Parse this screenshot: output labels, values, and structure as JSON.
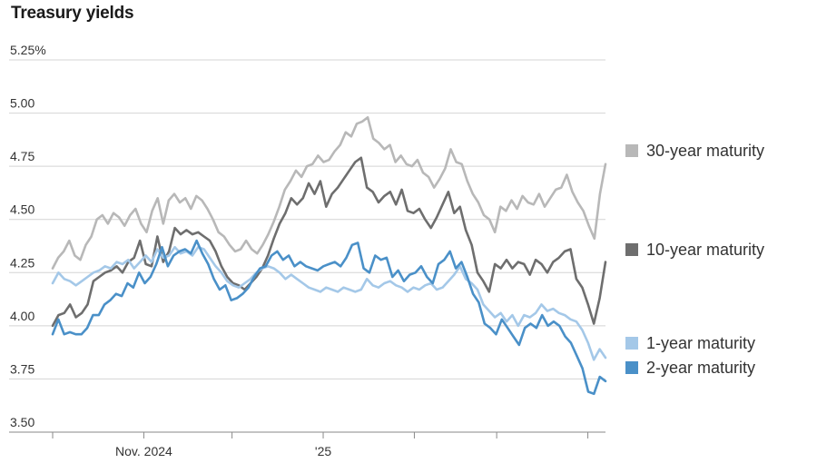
{
  "chart_data": {
    "type": "line",
    "title": "Treasury yields",
    "xlabel": "",
    "ylabel": "",
    "ylim": [
      3.5,
      5.25
    ],
    "y_ticks": [
      {
        "value": 5.25,
        "label": "5.25%"
      },
      {
        "value": 5.0,
        "label": "5.00"
      },
      {
        "value": 4.75,
        "label": "4.75"
      },
      {
        "value": 4.5,
        "label": "4.50"
      },
      {
        "value": 4.25,
        "label": "4.25"
      },
      {
        "value": 4.0,
        "label": "4.00"
      },
      {
        "value": 3.75,
        "label": "3.75"
      },
      {
        "value": 3.5,
        "label": "3.50"
      }
    ],
    "x_ticks": [
      {
        "date": "2024-10-01",
        "label": ""
      },
      {
        "date": "2024-11-01",
        "label": "Nov. 2024"
      },
      {
        "date": "2024-12-01",
        "label": ""
      },
      {
        "date": "2025-01-01",
        "label": "'25"
      },
      {
        "date": "2025-02-01",
        "label": ""
      },
      {
        "date": "2025-03-01",
        "label": ""
      },
      {
        "date": "2025-04-01",
        "label": ""
      }
    ],
    "grid": true,
    "legend_placement": "right",
    "series": [
      {
        "name": "30-year maturity",
        "color": "#b8b8b8",
        "values": [
          4.27,
          4.32,
          4.35,
          4.4,
          4.33,
          4.31,
          4.38,
          4.42,
          4.5,
          4.52,
          4.48,
          4.53,
          4.51,
          4.47,
          4.52,
          4.55,
          4.48,
          4.44,
          4.54,
          4.6,
          4.48,
          4.59,
          4.62,
          4.58,
          4.6,
          4.55,
          4.61,
          4.59,
          4.55,
          4.5,
          4.44,
          4.42,
          4.38,
          4.35,
          4.36,
          4.4,
          4.36,
          4.34,
          4.38,
          4.43,
          4.49,
          4.56,
          4.64,
          4.68,
          4.73,
          4.7,
          4.75,
          4.76,
          4.8,
          4.77,
          4.78,
          4.82,
          4.85,
          4.91,
          4.89,
          4.95,
          4.96,
          4.98,
          4.88,
          4.86,
          4.83,
          4.85,
          4.77,
          4.8,
          4.76,
          4.75,
          4.78,
          4.72,
          4.7,
          4.65,
          4.69,
          4.74,
          4.83,
          4.77,
          4.76,
          4.68,
          4.62,
          4.58,
          4.52,
          4.5,
          4.44,
          4.56,
          4.54,
          4.59,
          4.55,
          4.61,
          4.58,
          4.57,
          4.62,
          4.56,
          4.6,
          4.64,
          4.65,
          4.71,
          4.63,
          4.58,
          4.54,
          4.47,
          4.41,
          4.62,
          4.76
        ]
      },
      {
        "name": "10-year maturity",
        "color": "#6e6e6e",
        "values": [
          4.0,
          4.05,
          4.06,
          4.1,
          4.04,
          4.06,
          4.1,
          4.21,
          4.23,
          4.25,
          4.26,
          4.28,
          4.25,
          4.3,
          4.32,
          4.4,
          4.29,
          4.28,
          4.42,
          4.3,
          4.35,
          4.46,
          4.43,
          4.45,
          4.43,
          4.44,
          4.42,
          4.4,
          4.35,
          4.28,
          4.23,
          4.2,
          4.19,
          4.17,
          4.2,
          4.23,
          4.27,
          4.33,
          4.41,
          4.48,
          4.53,
          4.6,
          4.57,
          4.6,
          4.67,
          4.62,
          4.68,
          4.56,
          4.62,
          4.65,
          4.69,
          4.73,
          4.77,
          4.79,
          4.65,
          4.63,
          4.58,
          4.61,
          4.63,
          4.57,
          4.64,
          4.54,
          4.53,
          4.55,
          4.5,
          4.46,
          4.51,
          4.57,
          4.63,
          4.53,
          4.56,
          4.45,
          4.38,
          4.25,
          4.21,
          4.16,
          4.29,
          4.27,
          4.31,
          4.27,
          4.3,
          4.29,
          4.24,
          4.31,
          4.29,
          4.25,
          4.3,
          4.32,
          4.35,
          4.36,
          4.22,
          4.18,
          4.1,
          4.01,
          4.13,
          4.3
        ]
      },
      {
        "name": "1-year maturity",
        "color": "#a4c8e8",
        "values": [
          4.2,
          4.25,
          4.22,
          4.21,
          4.19,
          4.21,
          4.23,
          4.25,
          4.26,
          4.28,
          4.27,
          4.3,
          4.29,
          4.31,
          4.27,
          4.3,
          4.33,
          4.3,
          4.36,
          4.32,
          4.33,
          4.37,
          4.34,
          4.35,
          4.33,
          4.37,
          4.36,
          4.32,
          4.28,
          4.25,
          4.21,
          4.19,
          4.18,
          4.2,
          4.22,
          4.25,
          4.27,
          4.28,
          4.27,
          4.25,
          4.22,
          4.24,
          4.22,
          4.2,
          4.18,
          4.17,
          4.16,
          4.18,
          4.17,
          4.16,
          4.18,
          4.17,
          4.16,
          4.17,
          4.22,
          4.19,
          4.18,
          4.2,
          4.21,
          4.19,
          4.18,
          4.16,
          4.18,
          4.17,
          4.19,
          4.2,
          4.17,
          4.18,
          4.21,
          4.24,
          4.28,
          4.22,
          4.2,
          4.17,
          4.1,
          4.07,
          4.04,
          4.06,
          4.02,
          4.05,
          4.0,
          4.05,
          4.04,
          4.06,
          4.1,
          4.07,
          4.08,
          4.06,
          4.05,
          4.03,
          4.02,
          3.98,
          3.92,
          3.84,
          3.89,
          3.85
        ]
      },
      {
        "name": "2-year maturity",
        "color": "#4a90c8",
        "values": [
          3.96,
          4.03,
          3.96,
          3.97,
          3.96,
          3.96,
          3.99,
          4.05,
          4.05,
          4.1,
          4.12,
          4.15,
          4.14,
          4.2,
          4.18,
          4.25,
          4.2,
          4.23,
          4.29,
          4.37,
          4.28,
          4.33,
          4.35,
          4.36,
          4.34,
          4.4,
          4.34,
          4.29,
          4.22,
          4.17,
          4.19,
          4.12,
          4.13,
          4.15,
          4.18,
          4.23,
          4.27,
          4.28,
          4.33,
          4.35,
          4.31,
          4.33,
          4.28,
          4.3,
          4.28,
          4.27,
          4.26,
          4.28,
          4.29,
          4.3,
          4.28,
          4.32,
          4.38,
          4.39,
          4.27,
          4.25,
          4.33,
          4.31,
          4.32,
          4.23,
          4.26,
          4.21,
          4.24,
          4.25,
          4.28,
          4.23,
          4.2,
          4.29,
          4.31,
          4.35,
          4.27,
          4.3,
          4.23,
          4.15,
          4.11,
          4.01,
          3.99,
          3.96,
          4.03,
          3.99,
          3.95,
          3.91,
          3.99,
          4.01,
          3.99,
          4.05,
          4.0,
          4.02,
          4.0,
          3.95,
          3.92,
          3.86,
          3.8,
          3.69,
          3.68,
          3.76,
          3.74
        ]
      }
    ]
  }
}
